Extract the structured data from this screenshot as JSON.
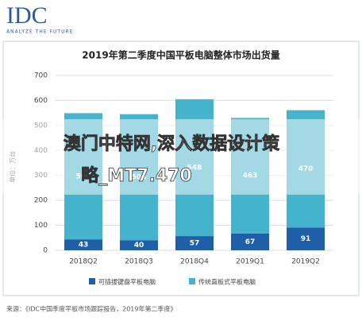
{
  "logo": {
    "name": "IDC",
    "tagline": "ANALYZE THE FUTURE"
  },
  "chart_data": {
    "type": "bar",
    "stacked": true,
    "title": "2019年第二季度中国平板电脑整体市场出货量",
    "y_label": "单位：万台",
    "categories": [
      "2018Q2",
      "2018Q3",
      "2018Q4",
      "2019Q1",
      "2019Q2"
    ],
    "series": [
      {
        "name": "可插拔键盘平板电脑",
        "color": "#1f5fa8",
        "values": [
          43,
          40,
          57,
          67,
          91
        ]
      },
      {
        "name": "传统直板式平板电脑",
        "color": "#45b3cb",
        "values": [
          506,
          505,
          548,
          463,
          470
        ]
      }
    ],
    "ylim": [
      0,
      700
    ],
    "yticks": [
      0,
      100,
      200,
      300,
      400,
      500,
      600,
      700
    ],
    "grid": true
  },
  "source": "来源：《IDC中国季度平板市场跟踪报告，2019年第二季度》",
  "overlay_text": [
    "澳门中特网,深入数据设计策",
    "略_MT7.470"
  ]
}
